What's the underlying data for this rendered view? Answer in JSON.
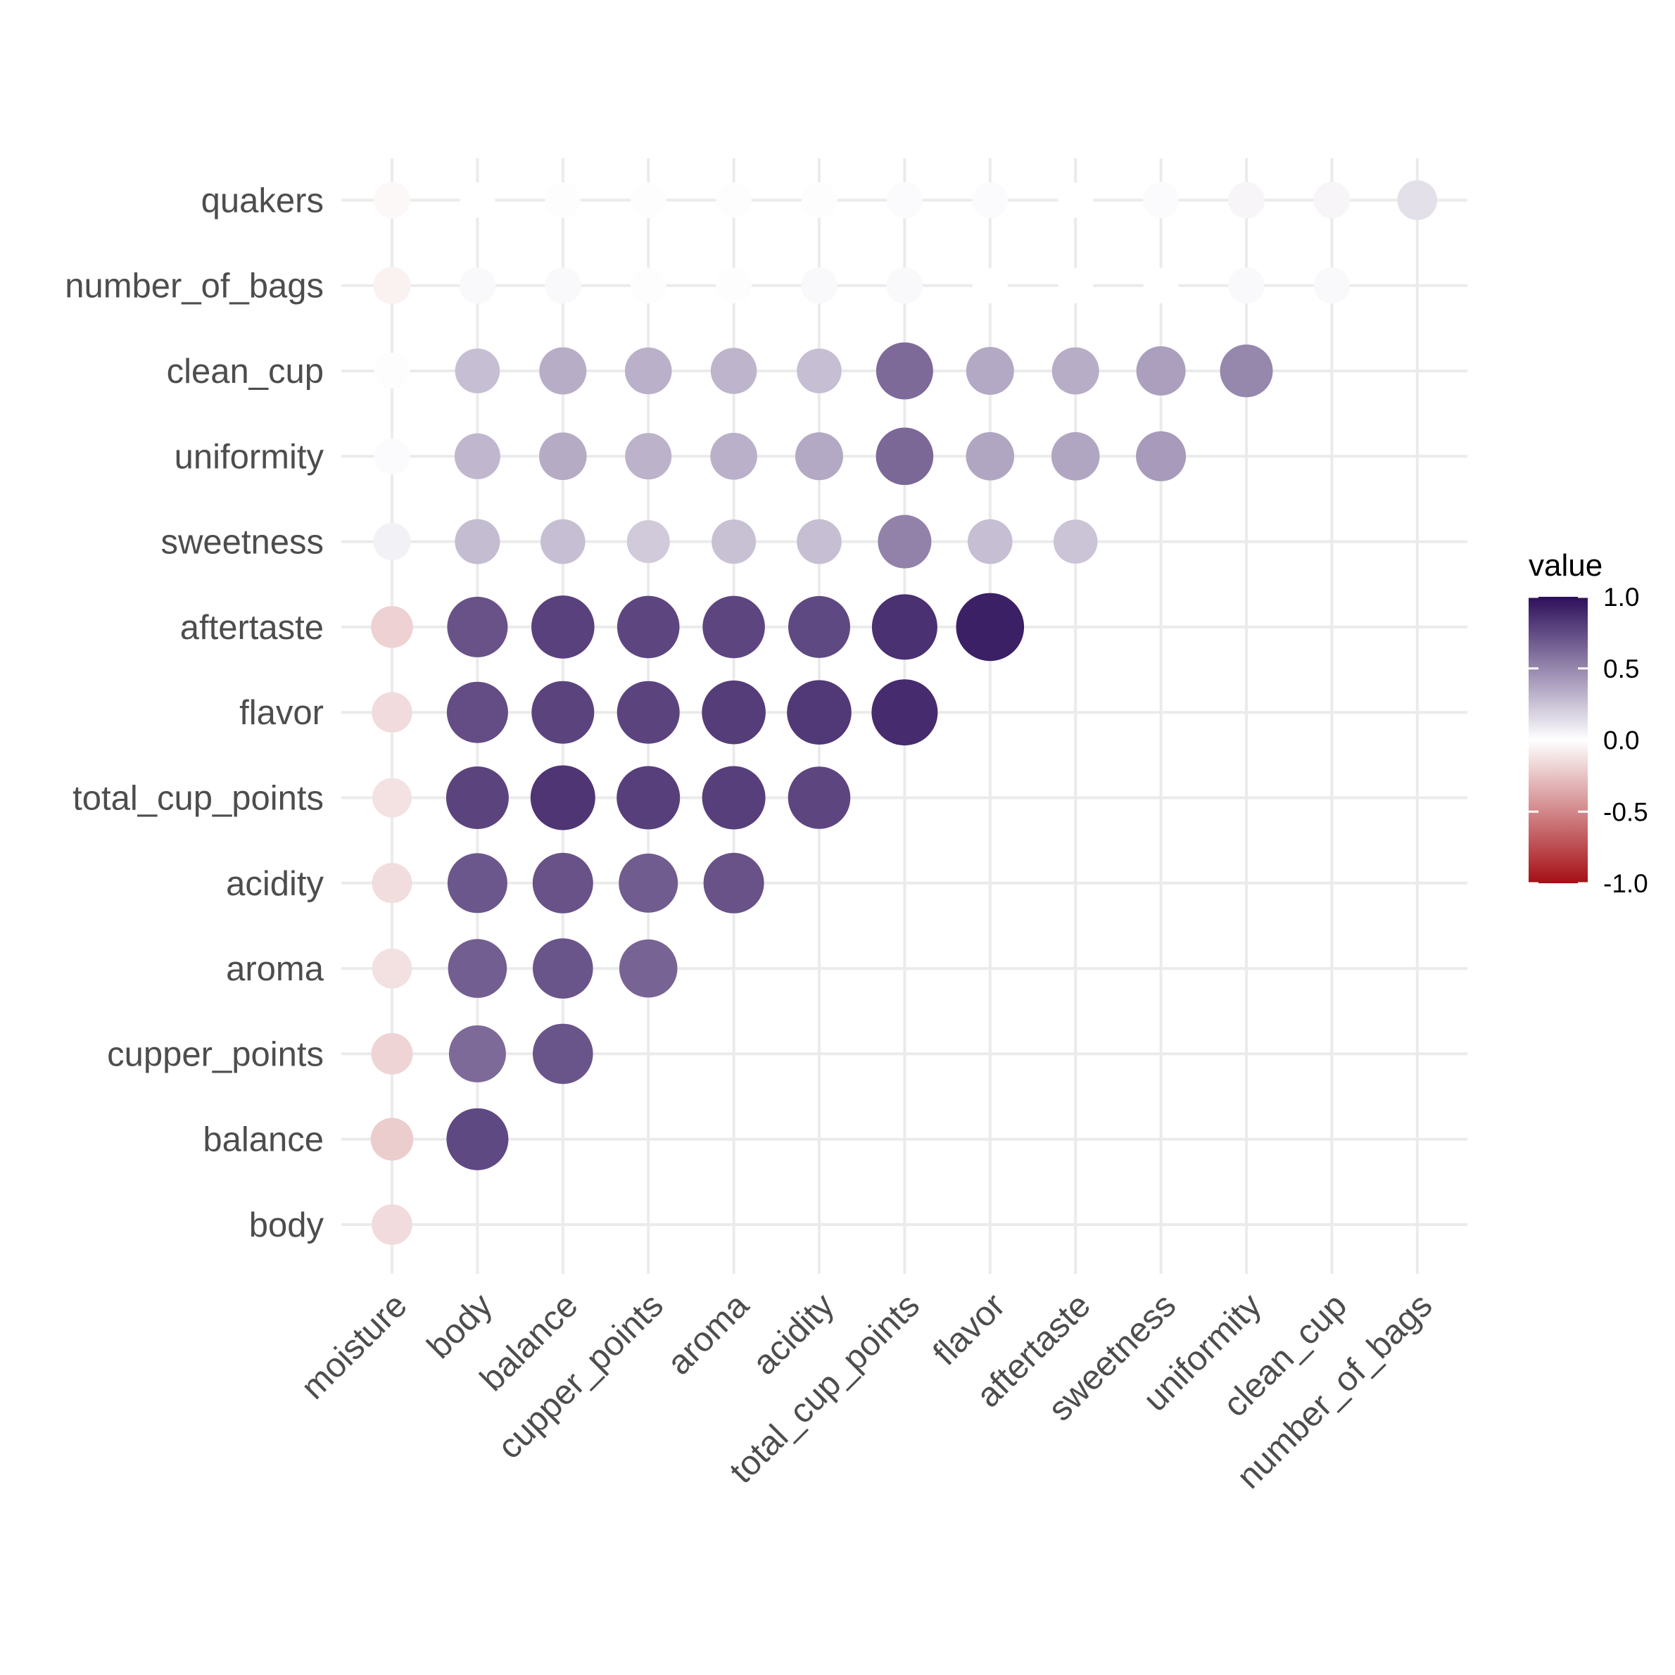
{
  "chart_data": {
    "type": "scatter",
    "subtype": "correlation-bubble-matrix",
    "x_categories": [
      "moisture",
      "body",
      "balance",
      "cupper_points",
      "aroma",
      "acidity",
      "total_cup_points",
      "flavor",
      "aftertaste",
      "sweetness",
      "uniformity",
      "clean_cup",
      "number_of_bags"
    ],
    "y_categories": [
      "body",
      "balance",
      "cupper_points",
      "aroma",
      "acidity",
      "total_cup_points",
      "flavor",
      "aftertaste",
      "sweetness",
      "uniformity",
      "clean_cup",
      "number_of_bags",
      "quakers"
    ],
    "values": [
      [
        -0.15,
        null,
        null,
        null,
        null,
        null,
        null,
        null,
        null,
        null,
        null,
        null,
        null
      ],
      [
        -0.21,
        0.76,
        null,
        null,
        null,
        null,
        null,
        null,
        null,
        null,
        null,
        null,
        null
      ],
      [
        -0.18,
        0.62,
        0.71,
        null,
        null,
        null,
        null,
        null,
        null,
        null,
        null,
        null,
        null
      ],
      [
        -0.13,
        0.67,
        0.71,
        0.65,
        null,
        null,
        null,
        null,
        null,
        null,
        null,
        null,
        null
      ],
      [
        -0.14,
        0.7,
        0.72,
        0.68,
        0.72,
        null,
        null,
        null,
        null,
        null,
        null,
        null,
        null
      ],
      [
        -0.12,
        0.78,
        0.84,
        0.8,
        0.8,
        0.77,
        null,
        null,
        null,
        null,
        null,
        null,
        null
      ],
      [
        -0.15,
        0.74,
        0.78,
        0.78,
        0.81,
        0.83,
        0.88,
        null,
        null,
        null,
        null,
        null,
        null
      ],
      [
        -0.19,
        0.72,
        0.79,
        0.77,
        0.77,
        0.76,
        0.86,
        0.93,
        null,
        null,
        null,
        null,
        null
      ],
      [
        0.06,
        0.28,
        0.27,
        0.22,
        0.26,
        0.27,
        0.52,
        0.27,
        0.25,
        null,
        null,
        null,
        null
      ],
      [
        0.02,
        0.3,
        0.35,
        0.32,
        0.33,
        0.36,
        0.63,
        0.37,
        0.37,
        0.42,
        null,
        null,
        null
      ],
      [
        0.01,
        0.27,
        0.34,
        0.33,
        0.31,
        0.27,
        0.62,
        0.36,
        0.34,
        0.4,
        0.5,
        null,
        null
      ],
      [
        -0.06,
        0.03,
        0.03,
        0.01,
        0.01,
        0.03,
        0.03,
        0.0,
        0.0,
        0.0,
        0.03,
        0.03,
        null
      ],
      [
        -0.03,
        0.0,
        0.01,
        0.01,
        0.01,
        0.01,
        0.02,
        0.02,
        0.0,
        0.02,
        0.04,
        0.04,
        0.13
      ]
    ],
    "legend": {
      "title": "value",
      "ticks": [
        "1.0",
        "0.5",
        "0.0",
        "-0.5",
        "-1.0"
      ],
      "tick_values": [
        1.0,
        0.5,
        0.0,
        -0.5,
        -1.0
      ],
      "range": [
        -1,
        1
      ],
      "colors": {
        "low": "#a50f15",
        "mid": "#ffffff",
        "high": "#2d0f5a"
      },
      "placement": "right"
    },
    "grid": true
  }
}
